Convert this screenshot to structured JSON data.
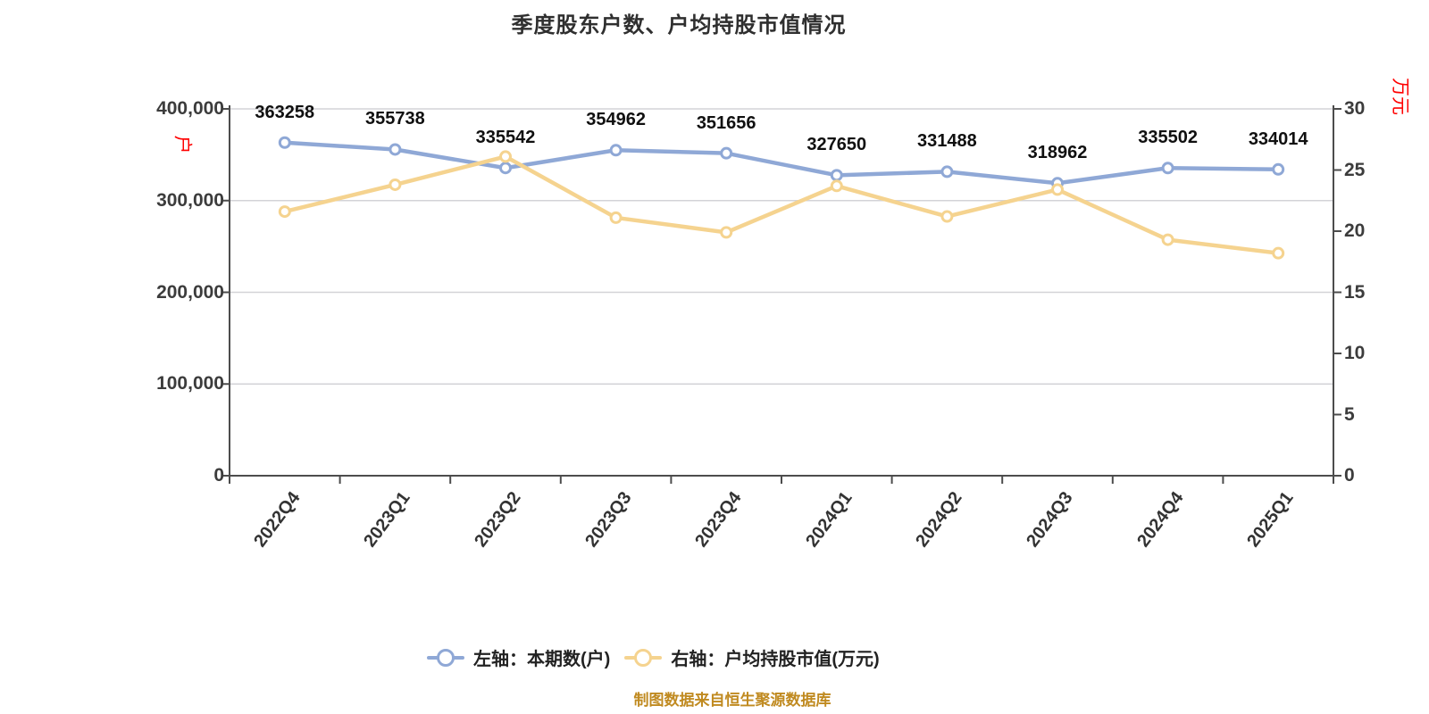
{
  "title": "季度股东户数、户均持股市值情况",
  "footer": "制图数据来自恒生聚源数据库",
  "colors": {
    "series_left": "#8FA8D6",
    "series_right": "#F5D38F",
    "grid": "#d3d3d7",
    "axis": "#4c4c4c",
    "unit_label": "#ff0000",
    "data_label": "#101010",
    "footer_text": "#c08a20"
  },
  "chart_data": {
    "type": "line",
    "categories": [
      "2022Q4",
      "2023Q1",
      "2023Q2",
      "2023Q3",
      "2023Q4",
      "2024Q1",
      "2024Q2",
      "2024Q3",
      "2024Q4",
      "2025Q1"
    ],
    "series": [
      {
        "name": "左轴：本期数(户)",
        "axis": "left",
        "color": "#8FA8D6",
        "show_labels": true,
        "values": [
          363258,
          355738,
          335542,
          354962,
          351656,
          327650,
          331488,
          318962,
          335502,
          334014
        ]
      },
      {
        "name": "右轴：户均持股市值(万元)",
        "axis": "right",
        "color": "#F5D38F",
        "show_labels": false,
        "values": [
          21.6,
          23.8,
          26.1,
          21.1,
          19.9,
          23.7,
          21.2,
          23.4,
          19.3,
          18.2
        ]
      }
    ],
    "left_axis": {
      "min": 0,
      "max": 400000,
      "unit": "户",
      "ticks": [
        "400,000",
        "300,000",
        "200,000",
        "100,000",
        "0"
      ]
    },
    "right_axis": {
      "min": 0,
      "max": 30,
      "unit": "万元",
      "ticks": [
        "30",
        "25",
        "20",
        "15",
        "10",
        "5",
        "0"
      ]
    },
    "grid": true,
    "legend_position": "bottom"
  }
}
